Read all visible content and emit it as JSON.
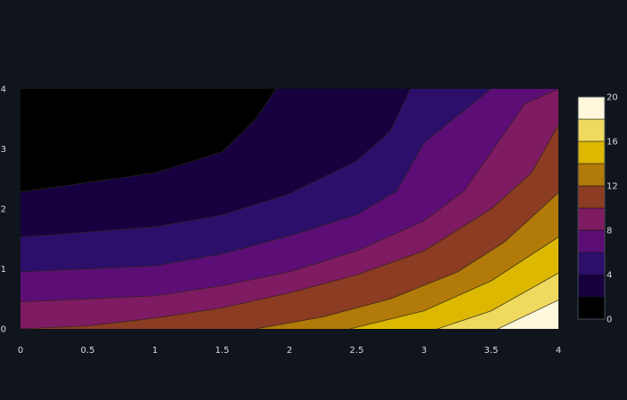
{
  "chart_data": {
    "type": "contour",
    "x_ticks": [
      "0",
      "0.5",
      "1",
      "1.5",
      "2",
      "2.5",
      "3",
      "3.5",
      "4"
    ],
    "y_ticks": [
      "0",
      "1",
      "2",
      "3",
      "4"
    ],
    "xlim": [
      0,
      4
    ],
    "ylim": [
      0,
      4
    ],
    "colorbar": {
      "ticks": [
        "0",
        "4",
        "8",
        "12",
        "16",
        "20"
      ],
      "range": [
        0,
        20
      ],
      "step": 2
    },
    "levels": [
      2,
      4,
      6,
      8,
      10,
      12,
      14,
      16,
      18
    ],
    "level_paths": [
      [
        [
          0,
          2.28
        ],
        [
          1.0,
          2.6
        ],
        [
          1.5,
          2.95
        ],
        [
          1.75,
          3.5
        ],
        [
          1.9,
          4.0
        ]
      ],
      [
        [
          0,
          1.53
        ],
        [
          1.0,
          1.7
        ],
        [
          1.5,
          1.9
        ],
        [
          2.0,
          2.25
        ],
        [
          2.5,
          2.8
        ],
        [
          2.75,
          3.3
        ],
        [
          2.9,
          4.0
        ]
      ],
      [
        [
          0,
          0.95
        ],
        [
          1.0,
          1.05
        ],
        [
          1.5,
          1.25
        ],
        [
          2.0,
          1.55
        ],
        [
          2.5,
          1.9
        ],
        [
          2.8,
          2.3
        ],
        [
          3.0,
          3.1
        ],
        [
          3.5,
          4.0
        ]
      ],
      [
        [
          0,
          0.45
        ],
        [
          1.0,
          0.55
        ],
        [
          1.5,
          0.72
        ],
        [
          2.0,
          0.95
        ],
        [
          2.5,
          1.3
        ],
        [
          3.0,
          1.8
        ],
        [
          3.3,
          2.3
        ],
        [
          3.75,
          3.75
        ],
        [
          4.0,
          4.0
        ]
      ],
      [
        [
          0,
          0.0
        ],
        [
          0.5,
          0.05
        ],
        [
          1.0,
          0.18
        ],
        [
          1.5,
          0.35
        ],
        [
          2.0,
          0.6
        ],
        [
          2.5,
          0.9
        ],
        [
          3.0,
          1.3
        ],
        [
          3.5,
          2.0
        ],
        [
          3.8,
          2.6
        ],
        [
          4.0,
          3.4
        ]
      ],
      [
        [
          1.75,
          0.0
        ],
        [
          2.25,
          0.2
        ],
        [
          2.75,
          0.5
        ],
        [
          3.25,
          0.95
        ],
        [
          3.6,
          1.45
        ],
        [
          4.0,
          2.27
        ]
      ],
      [
        [
          2.45,
          0.0
        ],
        [
          3.0,
          0.3
        ],
        [
          3.5,
          0.8
        ],
        [
          4.0,
          1.53
        ]
      ],
      [
        [
          3.1,
          0.0
        ],
        [
          3.5,
          0.3
        ],
        [
          4.0,
          0.93
        ]
      ],
      [
        [
          3.55,
          0.0
        ],
        [
          4.0,
          0.48
        ]
      ]
    ],
    "colors": {
      "background": "#10141c",
      "bands": [
        "#000000",
        "#160040",
        "#2c0f6b",
        "#5c0e76",
        "#7e1b62",
        "#8b3c22",
        "#b17a09",
        "#dcb800",
        "#efd95f",
        "#fff8dc"
      ]
    }
  }
}
